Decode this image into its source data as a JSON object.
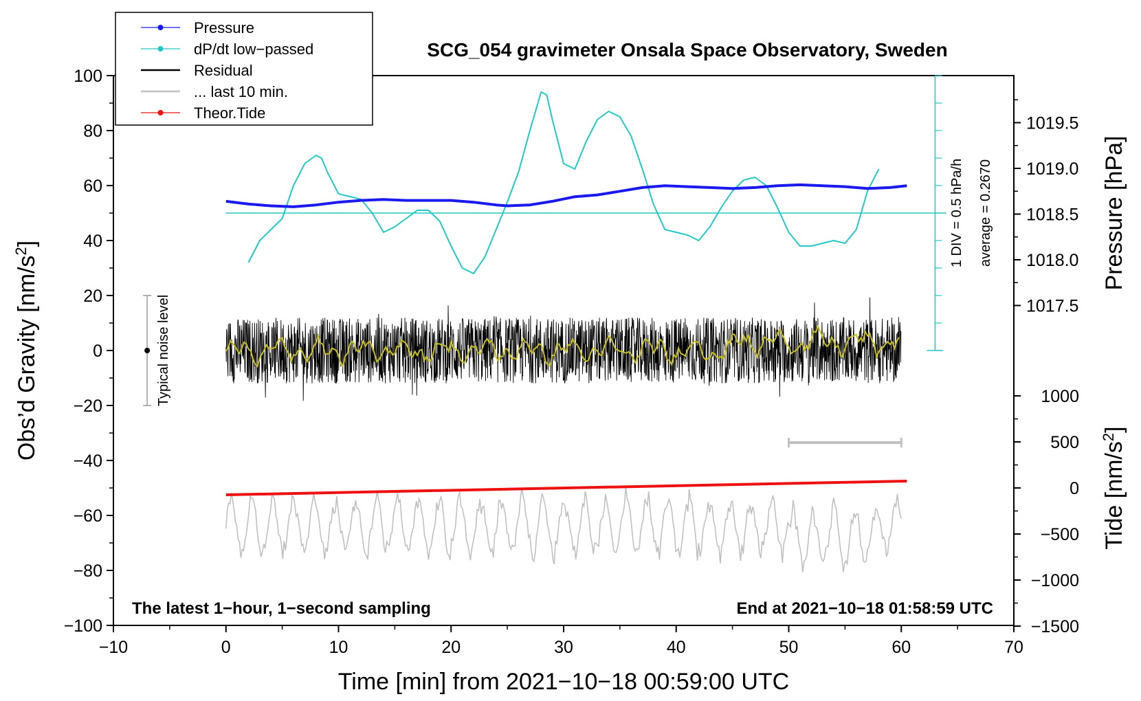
{
  "chart_data": {
    "type": "line",
    "title": "SCG_054 gravimeter Onsala Space Observatory, Sweden",
    "xlabel": "Time [min] from 2021−10−18 00:59:00 UTC",
    "ylabel_left_main": "Obs’d Gravity [nm/s",
    "ylabel_left_sup": "2",
    "ylabel_left_end": "]",
    "ylabel_right_top": "Pressure [hPa]",
    "ylabel_right_bottom_main": "Tide [nm/s",
    "ylabel_right_bottom_sup": "2",
    "ylabel_right_bottom_end": "]",
    "xlim": [
      -10,
      70
    ],
    "ylim": [
      -100,
      100
    ],
    "pressure_lim": [
      1017.25,
      1019.85
    ],
    "tide_lim": [
      -1500,
      1000
    ],
    "x_ticks": [
      -10,
      0,
      10,
      20,
      30,
      40,
      50,
      60,
      70
    ],
    "x_tick_labels": [
      "−10",
      "0",
      "10",
      "20",
      "30",
      "40",
      "50",
      "60",
      "70"
    ],
    "y_ticks": [
      100,
      80,
      60,
      40,
      20,
      0,
      -20,
      -40,
      -60,
      -80,
      -100
    ],
    "y_tick_labels": [
      "100",
      "80",
      "60",
      "40",
      "20",
      "0",
      "−20",
      "−40",
      "−60",
      "−80",
      "−100"
    ],
    "pressure_ticks": [
      1019.5,
      1019.0,
      1018.5,
      1018.0,
      1017.5
    ],
    "pressure_tick_labels": [
      "1019.5",
      "1019.0",
      "1018.5",
      "1018.0",
      "1017.5"
    ],
    "tide_ticks": [
      1000,
      500,
      0,
      -500,
      -1000,
      -1500
    ],
    "tide_tick_labels": [
      "1000",
      "500",
      "0",
      "−500",
      "−1000",
      "−1500"
    ],
    "legend": [
      {
        "label": "Pressure",
        "color": "#1a1aee",
        "marker": true
      },
      {
        "label": "dP/dt low−passed",
        "color": "#22c8c8",
        "marker": true
      },
      {
        "label": "Residual",
        "color": "#000000",
        "marker": false
      },
      {
        "label": "... last 10 min.",
        "color": "#c0c0c0",
        "marker": false
      },
      {
        "label": "Theor.Tide",
        "color": "#ee1111",
        "marker": true
      }
    ],
    "series": [
      {
        "name": "Pressure (hPa)",
        "color": "#1a1aee",
        "x": [
          0,
          2,
          4,
          6,
          8,
          10,
          12,
          14,
          16,
          18,
          20,
          22,
          24,
          25,
          27,
          29,
          31,
          33,
          35,
          37,
          39,
          41,
          43,
          45,
          47,
          49,
          51,
          53,
          55,
          57,
          59,
          60.5
        ],
        "y": [
          1018.64,
          1018.61,
          1018.59,
          1018.58,
          1018.6,
          1018.63,
          1018.65,
          1018.66,
          1018.65,
          1018.65,
          1018.65,
          1018.63,
          1018.6,
          1018.59,
          1018.6,
          1018.64,
          1018.69,
          1018.71,
          1018.75,
          1018.79,
          1018.81,
          1018.8,
          1018.79,
          1018.78,
          1018.79,
          1018.81,
          1018.82,
          1018.81,
          1018.8,
          1018.78,
          1018.79,
          1018.81
        ]
      },
      {
        "name": "dP/dt low-passed (1 DIV = 0.5 hPa/h)",
        "color": "#22c8c8",
        "x": [
          2,
          3,
          4,
          5,
          6,
          7,
          8,
          8.5,
          9,
          10,
          11,
          12,
          13,
          14,
          15,
          16,
          17,
          18,
          19,
          20,
          21,
          22,
          23,
          24,
          25,
          26,
          27,
          28,
          28.5,
          29,
          30,
          31,
          32,
          33,
          34,
          35,
          36,
          37,
          38,
          39,
          40,
          41,
          42,
          43,
          44,
          45,
          46,
          47,
          48,
          49,
          50,
          51,
          52,
          53,
          54,
          55,
          56,
          57,
          58
        ],
        "y": [
          32,
          40,
          44,
          48,
          60,
          68,
          71,
          70,
          65,
          57,
          56,
          55,
          50,
          43,
          45,
          48,
          51,
          51,
          47,
          38,
          30,
          28,
          34,
          44,
          54,
          65,
          80,
          94,
          93,
          84,
          68,
          66,
          76,
          84,
          87,
          85,
          78,
          66,
          53,
          44,
          43,
          42,
          40,
          45,
          52,
          58,
          62,
          63,
          60,
          52,
          43,
          38,
          38,
          39,
          40,
          39,
          44,
          58,
          66
        ]
      },
      {
        "name": "Residual",
        "color": "#000000",
        "x_range": [
          0,
          60
        ],
        "center": 0,
        "spread": 12
      },
      {
        "name": "Residual smoothed",
        "color": "#c8c020",
        "x_range": [
          0,
          60
        ],
        "center": 0,
        "spread": 5
      },
      {
        "name": "... last 10 min.",
        "color": "#c0c0c0",
        "x_range": [
          0,
          60
        ],
        "center": -64,
        "spread": 10
      },
      {
        "name": "Theor.Tide",
        "color": "#ee1111",
        "x": [
          0,
          60.5
        ],
        "y": [
          -52.5,
          -47.5
        ]
      }
    ],
    "scale_bar": {
      "from": 50,
      "to": 60,
      "label": ""
    },
    "noise_bar": {
      "x": -7,
      "y": 0,
      "ymin": -20,
      "ymax": 20,
      "label": "Typical noise level"
    },
    "pressure_axis_note_1": "1 DIV = 0.5 hPa/h",
    "pressure_axis_note_2": "average = 0.2670",
    "footer_left": "The latest 1−hour, 1−second sampling",
    "footer_right": "End at 2021−10−18 01:58:59 UTC"
  }
}
